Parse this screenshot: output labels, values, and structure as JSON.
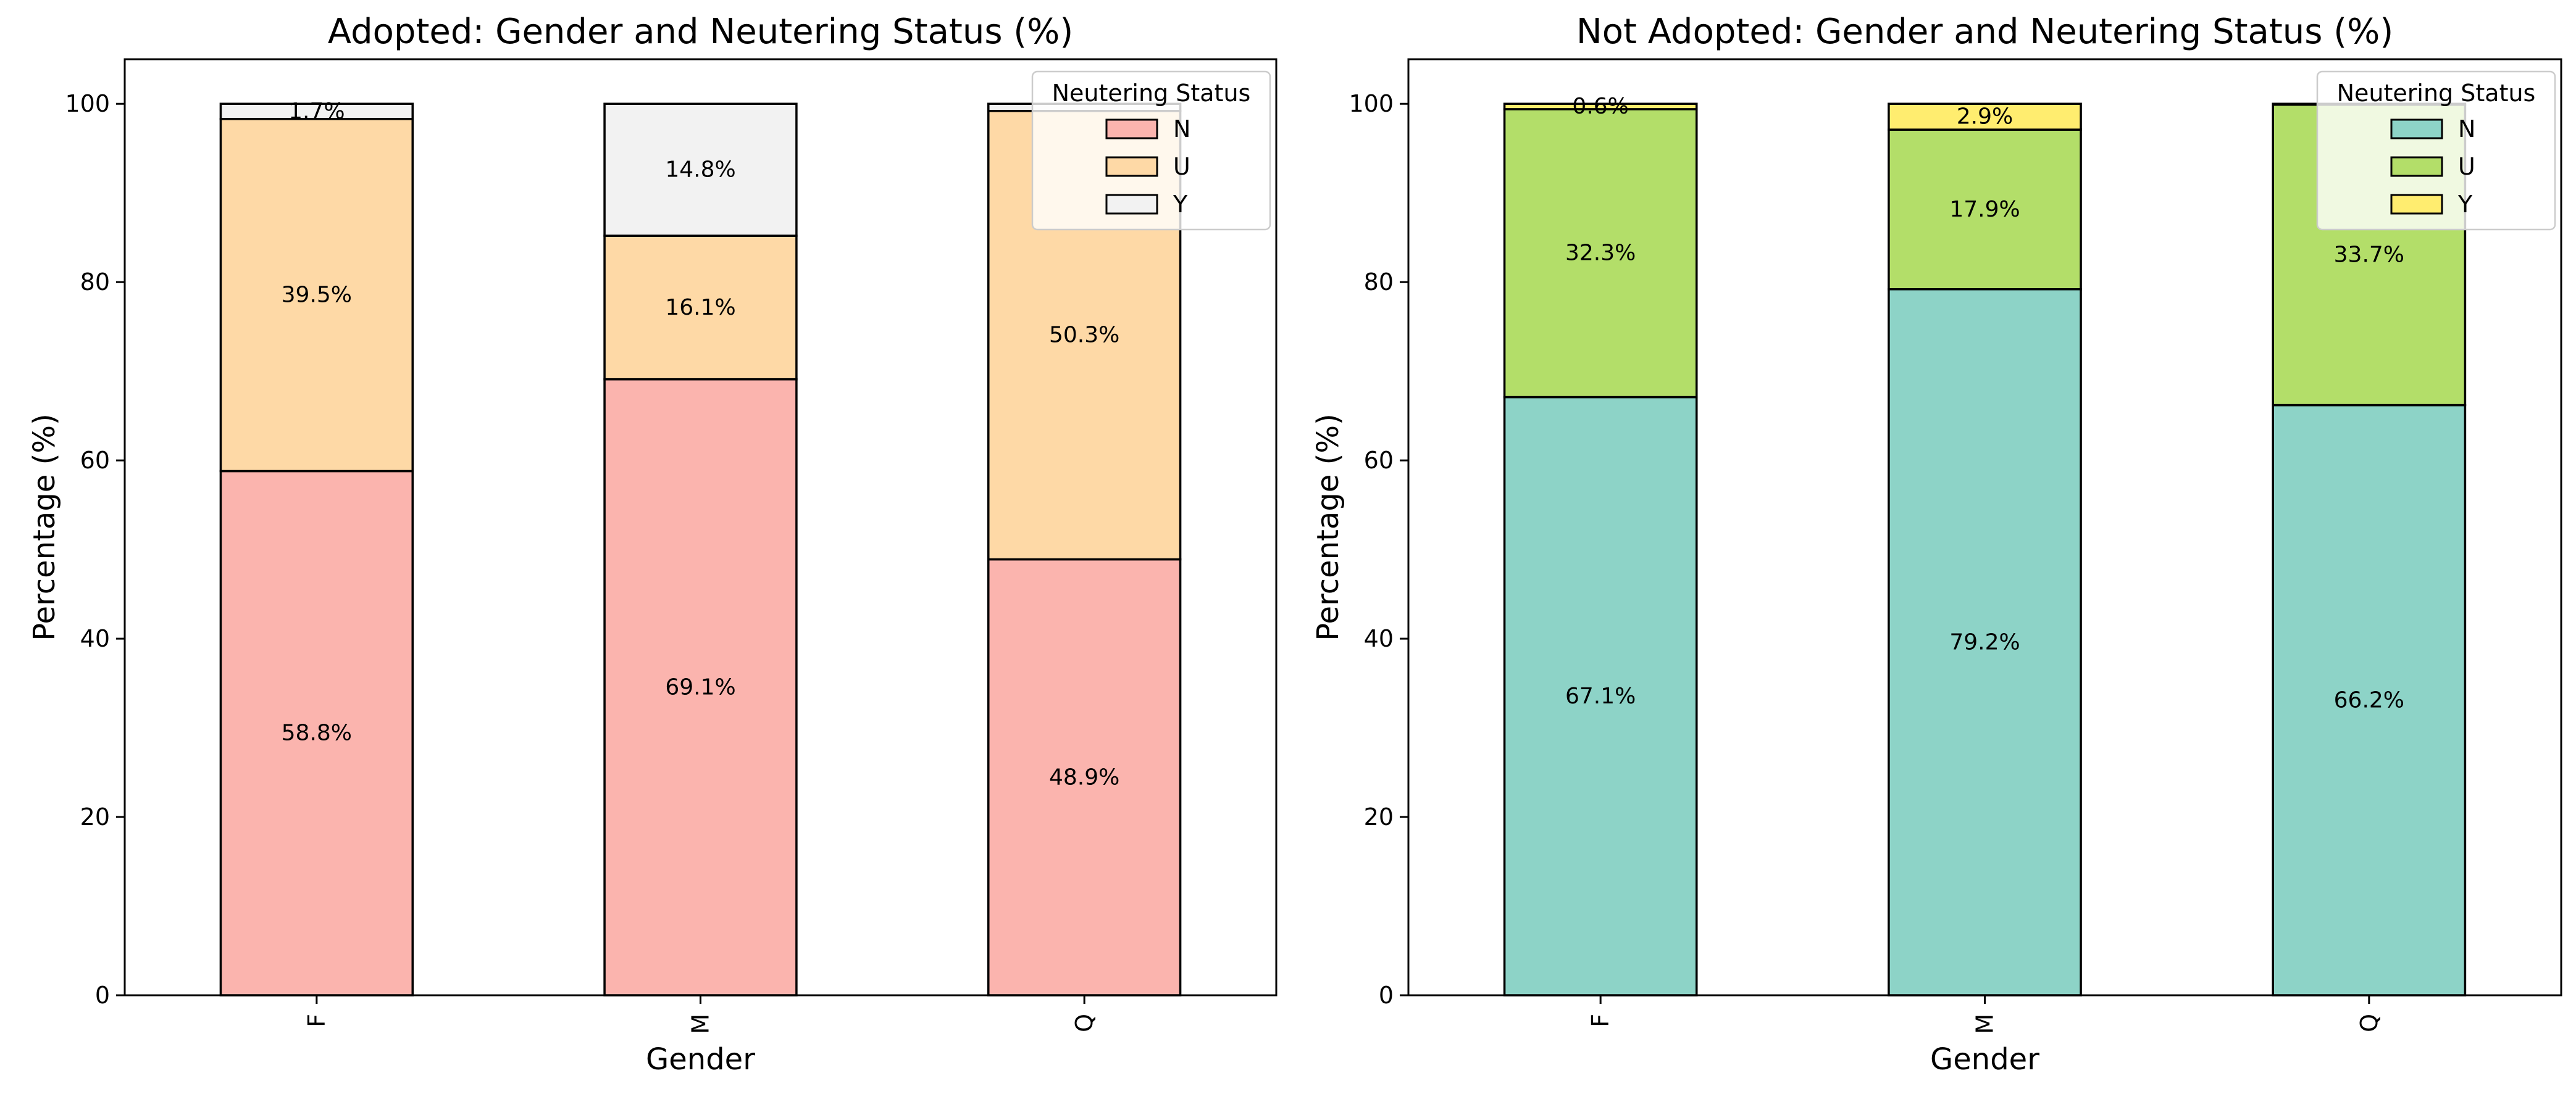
{
  "chart_data": [
    {
      "type": "bar",
      "stacked": true,
      "title": "Adopted: Gender and Neutering Status (%)",
      "xlabel": "Gender",
      "ylabel": "Percentage (%)",
      "categories": [
        "F",
        "M",
        "Q"
      ],
      "ylim": [
        0,
        105
      ],
      "yticks": [
        0,
        20,
        40,
        60,
        80,
        100
      ],
      "grid": false,
      "legend": {
        "title": "Neutering Status",
        "placement": "top-right"
      },
      "series": [
        {
          "name": "N",
          "color": "#fbb4ae",
          "values": [
            58.8,
            69.1,
            48.9
          ],
          "labels": [
            "58.8%",
            "69.1%",
            "48.9%"
          ]
        },
        {
          "name": "U",
          "color": "#fed9a6",
          "values": [
            39.5,
            16.1,
            50.3
          ],
          "labels": [
            "39.5%",
            "16.1%",
            "50.3%"
          ]
        },
        {
          "name": "Y",
          "color": "#f2f2f2",
          "values": [
            1.7,
            14.8,
            0.8
          ],
          "labels": [
            "1.7%",
            "14.8%",
            ""
          ]
        }
      ]
    },
    {
      "type": "bar",
      "stacked": true,
      "title": "Not Adopted: Gender and Neutering Status (%)",
      "xlabel": "Gender",
      "ylabel": "Percentage (%)",
      "categories": [
        "F",
        "M",
        "Q"
      ],
      "ylim": [
        0,
        105
      ],
      "yticks": [
        0,
        20,
        40,
        60,
        80,
        100
      ],
      "grid": false,
      "legend": {
        "title": "Neutering Status",
        "placement": "top-right"
      },
      "series": [
        {
          "name": "N",
          "color": "#8dd3c7",
          "values": [
            67.1,
            79.2,
            66.2
          ],
          "labels": [
            "67.1%",
            "79.2%",
            "66.2%"
          ]
        },
        {
          "name": "U",
          "color": "#b3de69",
          "values": [
            32.3,
            17.9,
            33.7
          ],
          "labels": [
            "32.3%",
            "17.9%",
            "33.7%"
          ]
        },
        {
          "name": "Y",
          "color": "#ffed6f",
          "values": [
            0.6,
            2.9,
            0.1
          ],
          "labels": [
            "0.6%",
            "2.9%",
            ""
          ]
        }
      ]
    }
  ]
}
